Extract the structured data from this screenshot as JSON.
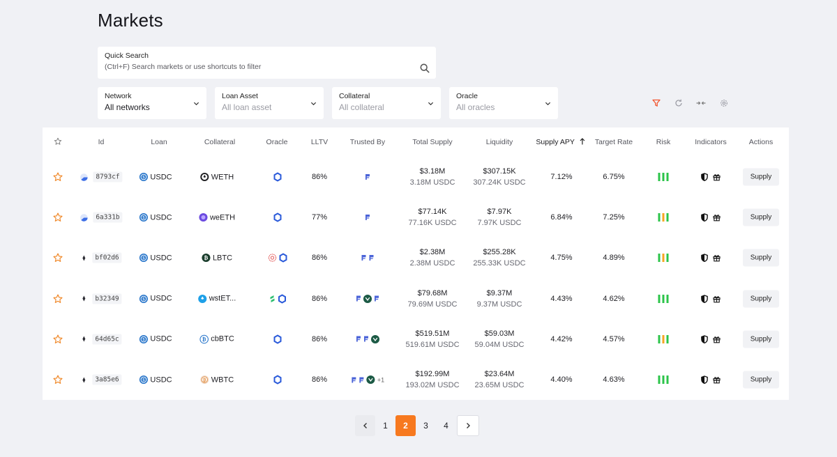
{
  "page": {
    "title": "Markets"
  },
  "search": {
    "label": "Quick Search",
    "placeholder": "(Ctrl+F) Search markets or use shortcuts to filter"
  },
  "filters": [
    {
      "label": "Network",
      "value": "All networks",
      "muted": false
    },
    {
      "label": "Loan Asset",
      "value": "All loan asset",
      "muted": true
    },
    {
      "label": "Collateral",
      "value": "All collateral",
      "muted": true
    },
    {
      "label": "Oracle",
      "value": "All oracles",
      "muted": true
    }
  ],
  "toolbar": {
    "icons": [
      "filter-icon",
      "refresh-icon",
      "compress-icon",
      "settings-icon"
    ],
    "filter_color": "#f2542d"
  },
  "table": {
    "columns": [
      "Id",
      "Loan",
      "Collateral",
      "Oracle",
      "LLTV",
      "Trusted By",
      "Total Supply",
      "Liquidity",
      "Supply APY",
      "Target Rate",
      "Risk",
      "Indicators",
      "Actions"
    ],
    "sorted_column": "Supply APY",
    "rows": [
      {
        "id": "8793cf",
        "loan": "USDC",
        "collateral": "WETH",
        "lltv": "86%",
        "total_supply": "$3.18M",
        "total_supply_sub": "3.18M USDC",
        "liquidity": "$307.15K",
        "liquidity_sub": "307.24K USDC",
        "apy": "7.12%",
        "target_rate": "6.75%",
        "action": "Supply"
      },
      {
        "id": "6a331b",
        "loan": "USDC",
        "collateral": "weETH",
        "lltv": "77%",
        "total_supply": "$77.14K",
        "total_supply_sub": "77.16K USDC",
        "liquidity": "$7.97K",
        "liquidity_sub": "7.97K USDC",
        "apy": "6.84%",
        "target_rate": "7.25%",
        "action": "Supply"
      },
      {
        "id": "bf02d6",
        "loan": "USDC",
        "collateral": "LBTC",
        "lltv": "86%",
        "total_supply": "$2.38M",
        "total_supply_sub": "2.38M USDC",
        "liquidity": "$255.28K",
        "liquidity_sub": "255.33K USDC",
        "apy": "4.75%",
        "target_rate": "4.89%",
        "action": "Supply"
      },
      {
        "id": "b32349",
        "loan": "USDC",
        "collateral": "wstET...",
        "lltv": "86%",
        "total_supply": "$79.68M",
        "total_supply_sub": "79.69M USDC",
        "liquidity": "$9.37M",
        "liquidity_sub": "9.37M USDC",
        "apy": "4.43%",
        "target_rate": "4.62%",
        "action": "Supply"
      },
      {
        "id": "64d65c",
        "loan": "USDC",
        "collateral": "cbBTC",
        "lltv": "86%",
        "total_supply": "$519.51M",
        "total_supply_sub": "519.61M USDC",
        "liquidity": "$59.03M",
        "liquidity_sub": "59.04M USDC",
        "apy": "4.42%",
        "target_rate": "4.57%",
        "action": "Supply"
      },
      {
        "id": "3a85e6",
        "loan": "USDC",
        "collateral": "WBTC",
        "lltv": "86%",
        "total_supply": "$192.99M",
        "total_supply_sub": "193.02M USDC",
        "liquidity": "$23.64M",
        "liquidity_sub": "23.65M USDC",
        "apy": "4.40%",
        "target_rate": "4.63%",
        "action": "Supply"
      }
    ],
    "trusted_more": "+1"
  },
  "pagination": {
    "pages": [
      "1",
      "2",
      "3",
      "4"
    ],
    "current": "2"
  },
  "colors": {
    "accent": "#f7791f",
    "star": "#f08a2c",
    "risk_green": "#2cc44a",
    "risk_orange": "#f5a623",
    "oracle_blue": "#2a5ada",
    "usdc_blue": "#2775ca"
  }
}
